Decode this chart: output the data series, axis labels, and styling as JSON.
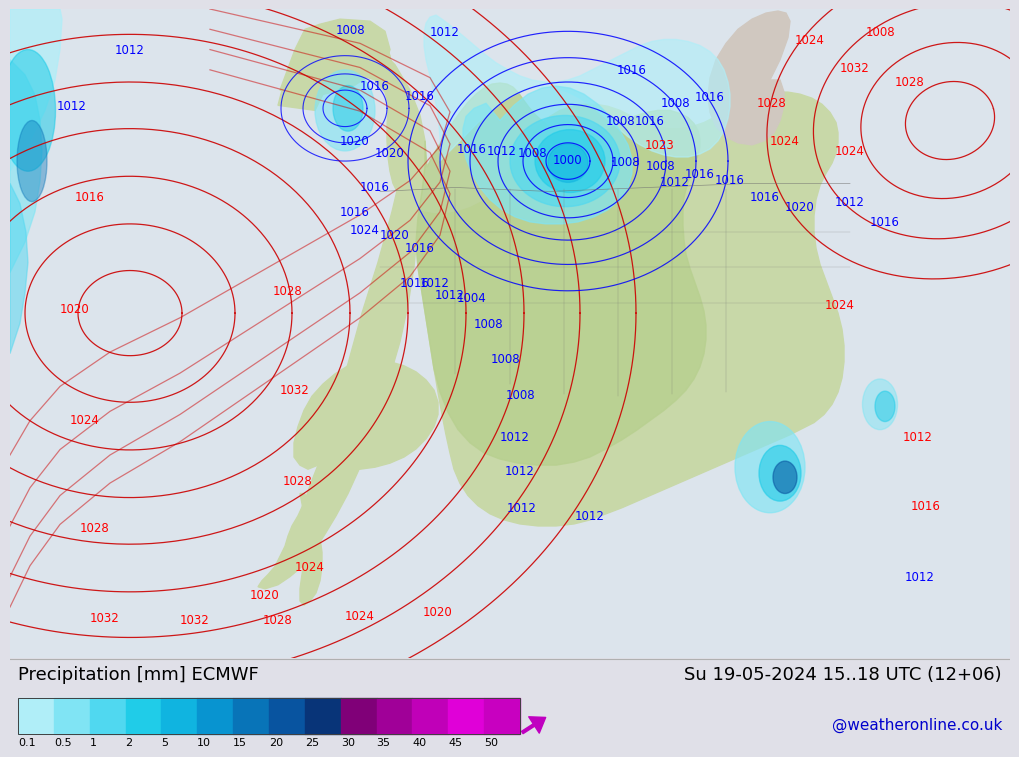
{
  "title_left": "Precipitation [mm] ECMWF",
  "title_right": "Su 19-05-2024 15..18 UTC (12+06)",
  "credit": "@weatheronline.co.uk",
  "colorbar_labels": [
    "0.1",
    "0.5",
    "1",
    "2",
    "5",
    "10",
    "15",
    "20",
    "25",
    "30",
    "35",
    "40",
    "45",
    "50"
  ],
  "colorbar_colors": [
    "#b0eef8",
    "#80e4f4",
    "#50d8f0",
    "#20cce8",
    "#10b4e0",
    "#0894d0",
    "#0874b8",
    "#0854a0",
    "#083478",
    "#800078",
    "#a00098",
    "#c000b8",
    "#e000d8",
    "#c800c0"
  ],
  "bg_color": "#dcdce8",
  "land_color": "#c8d8a8",
  "ocean_color": "#dce4ec",
  "label_fontsize": 13,
  "credit_fontsize": 11,
  "isobar_fontsize": 8.5
}
